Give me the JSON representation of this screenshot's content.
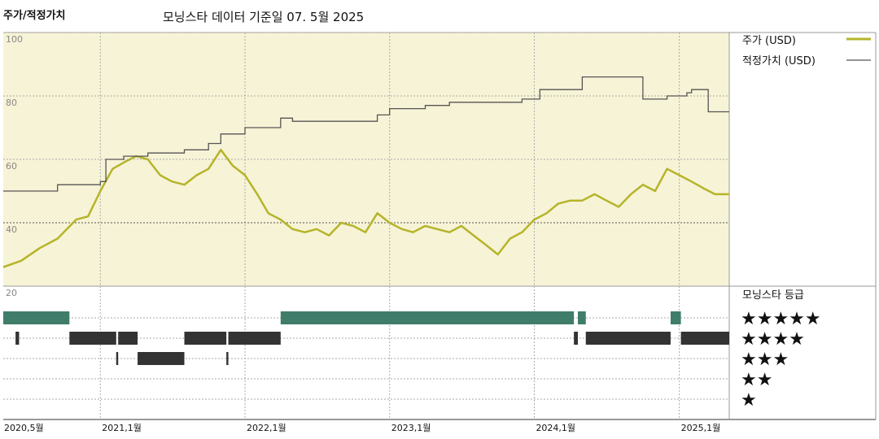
{
  "title": "주가/적정가치",
  "subtitle": "모닝스타 데이터 기준일 07. 5월 2025",
  "legend": {
    "price_label": "주가 (USD)",
    "fair_label": "적정가치 (USD)",
    "rating_label": "모닝스타 등급"
  },
  "colors": {
    "price": "#b5b42a",
    "fair": "#555555",
    "bg_top": "#f7f3d6",
    "rating_5": "#3f7d6a",
    "rating_4": "#333333",
    "rating_3": "#333333"
  },
  "chart_data": {
    "type": "line",
    "y_ticks": [
      20,
      40,
      60,
      80,
      100
    ],
    "ylim": [
      20,
      100
    ],
    "x_ticks": [
      "2020,5월",
      "2021,1월",
      "2022,1월",
      "2023,1월",
      "2024,1월",
      "2025,1월"
    ],
    "xlim": [
      "2020-05-01",
      "2025-05-07"
    ],
    "series": [
      {
        "name": "주가 (USD)",
        "x": [
          "2020-05-01",
          "2020-06-15",
          "2020-08-01",
          "2020-09-15",
          "2020-11-01",
          "2020-12-01",
          "2021-01-01",
          "2021-02-01",
          "2021-03-01",
          "2021-04-01",
          "2021-05-01",
          "2021-06-01",
          "2021-07-01",
          "2021-08-01",
          "2021-09-01",
          "2021-10-01",
          "2021-11-01",
          "2021-12-01",
          "2022-01-01",
          "2022-02-01",
          "2022-03-01",
          "2022-04-01",
          "2022-05-01",
          "2022-06-01",
          "2022-07-01",
          "2022-08-01",
          "2022-09-01",
          "2022-10-01",
          "2022-11-01",
          "2022-12-01",
          "2023-01-01",
          "2023-02-01",
          "2023-03-01",
          "2023-04-01",
          "2023-05-01",
          "2023-06-01",
          "2023-07-01",
          "2023-08-01",
          "2023-09-01",
          "2023-10-01",
          "2023-11-01",
          "2023-12-01",
          "2024-01-01",
          "2024-02-01",
          "2024-03-01",
          "2024-04-01",
          "2024-05-01",
          "2024-06-01",
          "2024-07-01",
          "2024-08-01",
          "2024-09-01",
          "2024-10-01",
          "2024-11-01",
          "2024-12-01",
          "2025-01-01",
          "2025-02-01",
          "2025-03-01",
          "2025-04-01",
          "2025-05-07"
        ],
        "values": [
          26,
          28,
          32,
          35,
          41,
          42,
          50,
          57,
          59,
          61,
          60,
          55,
          53,
          52,
          55,
          57,
          63,
          58,
          55,
          49,
          43,
          41,
          38,
          37,
          38,
          36,
          40,
          39,
          37,
          43,
          40,
          38,
          37,
          39,
          38,
          37,
          39,
          36,
          33,
          30,
          35,
          37,
          41,
          43,
          46,
          47,
          47,
          49,
          47,
          45,
          49,
          52,
          50,
          57,
          55,
          53,
          51,
          49,
          49
        ]
      },
      {
        "name": "적정가치 (USD)",
        "x": [
          "2020-05-01",
          "2020-09-01",
          "2020-09-15",
          "2020-12-01",
          "2021-01-01",
          "2021-01-15",
          "2021-03-01",
          "2021-05-01",
          "2021-08-01",
          "2021-10-01",
          "2021-11-01",
          "2022-01-01",
          "2022-04-01",
          "2022-05-01",
          "2022-11-01",
          "2022-12-01",
          "2023-01-01",
          "2023-04-01",
          "2023-06-01",
          "2023-12-01",
          "2024-01-01",
          "2024-01-15",
          "2024-05-01",
          "2024-09-01",
          "2024-10-01",
          "2024-11-01",
          "2024-12-01",
          "2025-01-01",
          "2025-01-20",
          "2025-02-01",
          "2025-03-15",
          "2025-05-07"
        ],
        "values": [
          50,
          50,
          52,
          52,
          53,
          60,
          61,
          62,
          63,
          65,
          68,
          70,
          73,
          72,
          72,
          74,
          76,
          77,
          78,
          79,
          79,
          82,
          86,
          86,
          79,
          79,
          80,
          80,
          81,
          82,
          75,
          75
        ]
      }
    ],
    "ratings": {
      "5": [
        [
          "2020-05-01",
          "2020-10-15"
        ],
        [
          "2022-04-01",
          "2024-04-10"
        ],
        [
          "2024-04-20",
          "2024-05-10"
        ],
        [
          "2024-12-10",
          "2025-01-05"
        ]
      ],
      "4": [
        [
          "2020-06-01",
          "2020-06-10"
        ],
        [
          "2020-10-15",
          "2021-02-10"
        ],
        [
          "2021-02-15",
          "2021-04-05"
        ],
        [
          "2021-08-01",
          "2021-11-15"
        ],
        [
          "2021-11-20",
          "2022-04-01"
        ],
        [
          "2024-04-10",
          "2024-04-20"
        ],
        [
          "2024-05-10",
          "2024-12-10"
        ],
        [
          "2025-01-05",
          "2025-05-07"
        ]
      ],
      "3": [
        [
          "2021-02-10",
          "2021-02-15"
        ],
        [
          "2021-04-05",
          "2021-08-01"
        ],
        [
          "2021-11-15",
          "2021-11-20"
        ]
      ],
      "2": [],
      "1": []
    }
  }
}
